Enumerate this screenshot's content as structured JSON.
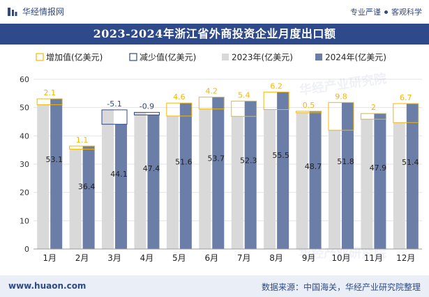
{
  "header": {
    "brand": "华经情报网",
    "tagline_left": "专业严谨",
    "tagline_right": "客观科学"
  },
  "title": "2023-2024年浙江省外商投资企业月度出口额",
  "footer": {
    "url": "www.huaon.com",
    "source": "数据来源：中国海关，华经产业研究院整理"
  },
  "watermark": "华经产业研究院",
  "colors": {
    "increase": "#f5b800",
    "decrease": "#2e4a8a",
    "y2023": "#d9d9d9",
    "y2024": "#6b7ea8",
    "accent": "#2e4a8a"
  },
  "chart_data": {
    "type": "bar",
    "title": "2023-2024年浙江省外商投资企业月度出口额",
    "categories": [
      "1月",
      "2月",
      "3月",
      "4月",
      "5月",
      "6月",
      "7月",
      "8月",
      "9月",
      "10月",
      "11月",
      "12月"
    ],
    "series": [
      {
        "name": "增加值(亿美元)",
        "key": "increase"
      },
      {
        "name": "减少值(亿美元)",
        "key": "decrease"
      },
      {
        "name": "2023年(亿美元)",
        "key": "y2023",
        "values": [
          51.0,
          35.3,
          49.2,
          48.3,
          47.0,
          49.5,
          46.9,
          49.3,
          48.2,
          42.0,
          45.9,
          44.7
        ]
      },
      {
        "name": "2024年(亿美元)",
        "key": "y2024",
        "values": [
          53.1,
          36.4,
          44.1,
          47.4,
          51.6,
          53.7,
          52.3,
          55.5,
          48.7,
          51.8,
          47.9,
          51.4
        ]
      }
    ],
    "change_labels": [
      "2.1",
      "1.1",
      "-5.1",
      "-0.9",
      "4.6",
      "4.2",
      "5.4",
      "6.2",
      "0.5",
      "9.8",
      "2",
      "6.7"
    ],
    "ylim": [
      0,
      60
    ],
    "yticks": [
      0,
      10,
      20,
      30,
      40,
      50,
      60
    ],
    "grid": true,
    "legend_position": "top"
  }
}
